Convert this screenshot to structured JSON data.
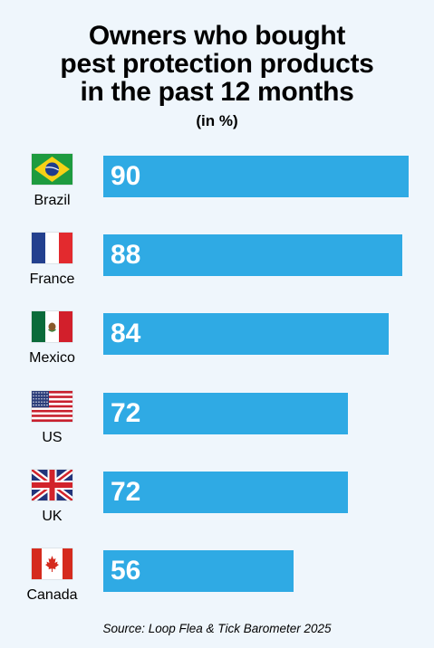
{
  "chart_data": {
    "type": "bar",
    "orientation": "horizontal",
    "title_lines": [
      "Owners who bought",
      "pest protection products",
      "in the past 12 months"
    ],
    "subtitle": "(in %)",
    "categories": [
      "Brazil",
      "France",
      "Mexico",
      "US",
      "UK",
      "Canada"
    ],
    "values": [
      90,
      88,
      84,
      72,
      72,
      56
    ],
    "xlim": [
      0,
      90
    ],
    "grid": false,
    "bar_color": "#2faae4",
    "value_label_color": "#ffffff",
    "category_icons": [
      "flag-brazil",
      "flag-france",
      "flag-mexico",
      "flag-us",
      "flag-uk",
      "flag-canada"
    ]
  },
  "source": "Source: Loop Flea & Tick Barometer 2025"
}
